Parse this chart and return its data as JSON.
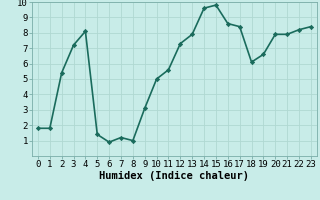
{
  "x": [
    0,
    1,
    2,
    3,
    4,
    5,
    6,
    7,
    8,
    9,
    10,
    11,
    12,
    13,
    14,
    15,
    16,
    17,
    18,
    19,
    20,
    21,
    22,
    23
  ],
  "y": [
    1.8,
    1.8,
    5.4,
    7.2,
    8.1,
    1.4,
    0.9,
    1.2,
    1.0,
    3.1,
    5.0,
    5.6,
    7.3,
    7.9,
    9.6,
    9.8,
    8.6,
    8.4,
    6.1,
    6.6,
    7.9,
    7.9,
    8.2,
    8.4
  ],
  "line_color": "#1a6b5c",
  "marker": "D",
  "marker_size": 2.2,
  "bg_color": "#c8ece8",
  "grid_color": "#b0d8d2",
  "xlabel": "Humidex (Indice chaleur)",
  "xlim": [
    -0.5,
    23.5
  ],
  "ylim": [
    0,
    10
  ],
  "xticks": [
    0,
    1,
    2,
    3,
    4,
    5,
    6,
    7,
    8,
    9,
    10,
    11,
    12,
    13,
    14,
    15,
    16,
    17,
    18,
    19,
    20,
    21,
    22,
    23
  ],
  "yticks": [
    1,
    2,
    3,
    4,
    5,
    6,
    7,
    8,
    9,
    10
  ],
  "xlabel_fontsize": 7.5,
  "tick_fontsize": 6.5,
  "line_width": 1.2
}
